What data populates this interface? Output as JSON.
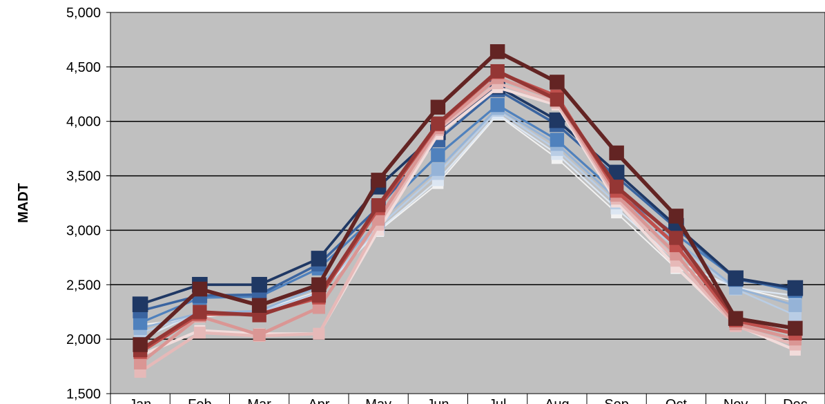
{
  "chart_data": {
    "type": "line",
    "ylabel": "MADT",
    "ylim": [
      1500,
      5000
    ],
    "yticks": [
      "1,500",
      "2,000",
      "2,500",
      "3,000",
      "3,500",
      "4,000",
      "4,500",
      "5,000"
    ],
    "categories": [
      "Jan",
      "Feb",
      "Mar",
      "Apr",
      "May",
      "Jun",
      "Jul",
      "Aug",
      "Sep",
      "Oct",
      "Nov",
      "Dec"
    ],
    "grid": true,
    "legend": "none",
    "plot_background": "#c0c0c0",
    "series": [
      {
        "color": "#f2f2f2",
        "values": [
          2130,
          2200,
          2260,
          2440,
          2990,
          3430,
          4060,
          3660,
          3160,
          2650,
          2480,
          2350
        ]
      },
      {
        "color": "#dce6f2",
        "values": [
          2000,
          2250,
          2240,
          2420,
          3000,
          3460,
          4070,
          3700,
          3200,
          2720,
          2470,
          2400
        ]
      },
      {
        "color": "#b9cde5",
        "values": [
          2060,
          2230,
          2250,
          2430,
          3030,
          3520,
          4100,
          3740,
          3250,
          2850,
          2460,
          2220
        ]
      },
      {
        "color": "#95b3d7",
        "values": [
          2100,
          2240,
          2260,
          2480,
          3080,
          3560,
          4120,
          3790,
          3290,
          2900,
          2470,
          2310
        ]
      },
      {
        "color": "#4f81bd",
        "values": [
          2150,
          2380,
          2390,
          2650,
          3150,
          3690,
          4150,
          3830,
          3340,
          2960,
          2560,
          2440
        ]
      },
      {
        "color": "#3a64a0",
        "values": [
          2260,
          2400,
          2410,
          2690,
          3210,
          3830,
          4290,
          3970,
          3490,
          3020,
          2550,
          2460
        ]
      },
      {
        "color": "#1f3864",
        "values": [
          2320,
          2500,
          2500,
          2740,
          3400,
          3900,
          4320,
          4010,
          3530,
          3040,
          2560,
          2470
        ]
      },
      {
        "color": "#f2dcdb",
        "values": [
          1850,
          2080,
          2050,
          2050,
          3000,
          3880,
          4310,
          4150,
          3260,
          2660,
          2130,
          1900
        ]
      },
      {
        "color": "#e6b9b8",
        "values": [
          1700,
          2060,
          2030,
          2050,
          3050,
          3920,
          4350,
          4170,
          3290,
          2720,
          2120,
          1950
        ]
      },
      {
        "color": "#da9694",
        "values": [
          1780,
          2210,
          2040,
          2290,
          3100,
          3940,
          4400,
          4200,
          3320,
          2780,
          2140,
          2000
        ]
      },
      {
        "color": "#c0504d",
        "values": [
          1880,
          2230,
          2230,
          2380,
          3200,
          3970,
          4450,
          4230,
          3360,
          2860,
          2170,
          2050
        ]
      },
      {
        "color": "#943634",
        "values": [
          1900,
          2250,
          2220,
          2400,
          3230,
          3980,
          4460,
          4200,
          3400,
          2930,
          2190,
          2100
        ]
      },
      {
        "color": "#632423",
        "values": [
          1950,
          2460,
          2310,
          2500,
          3460,
          4130,
          4640,
          4360,
          3710,
          3130,
          2190,
          2100
        ]
      }
    ]
  }
}
